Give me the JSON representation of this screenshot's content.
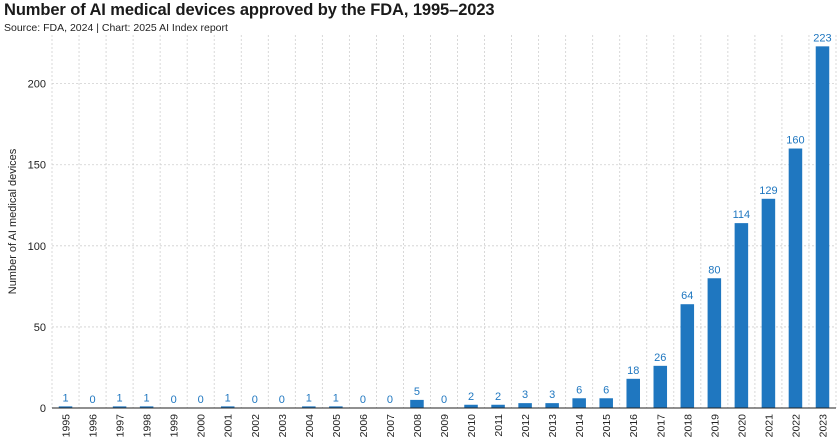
{
  "title": "Number of AI medical devices approved by the FDA, 1995–2023",
  "subtitle": "Source: FDA, 2024 | Chart: 2025 AI Index report",
  "colors": {
    "bar": "#1f77c0",
    "label": "#1f77c0",
    "grid": "#cfcfcf",
    "axis": "#222222"
  },
  "chart_data": {
    "type": "bar",
    "title": "Number of AI medical devices approved by the FDA, 1995–2023",
    "xlabel": "",
    "ylabel": "Number of AI medical devices",
    "ylim": [
      0,
      230
    ],
    "yticks": [
      0,
      50,
      100,
      150,
      200
    ],
    "grid": true,
    "legend": "none",
    "categories": [
      "1995",
      "1996",
      "1997",
      "1998",
      "1999",
      "2000",
      "2001",
      "2002",
      "2003",
      "2004",
      "2005",
      "2006",
      "2007",
      "2008",
      "2009",
      "2010",
      "2011",
      "2012",
      "2013",
      "2014",
      "2015",
      "2016",
      "2017",
      "2018",
      "2019",
      "2020",
      "2021",
      "2022",
      "2023"
    ],
    "values": [
      1,
      0,
      1,
      1,
      0,
      0,
      1,
      0,
      0,
      1,
      1,
      0,
      0,
      5,
      0,
      2,
      2,
      3,
      3,
      6,
      6,
      18,
      26,
      64,
      80,
      114,
      129,
      160,
      223
    ]
  }
}
